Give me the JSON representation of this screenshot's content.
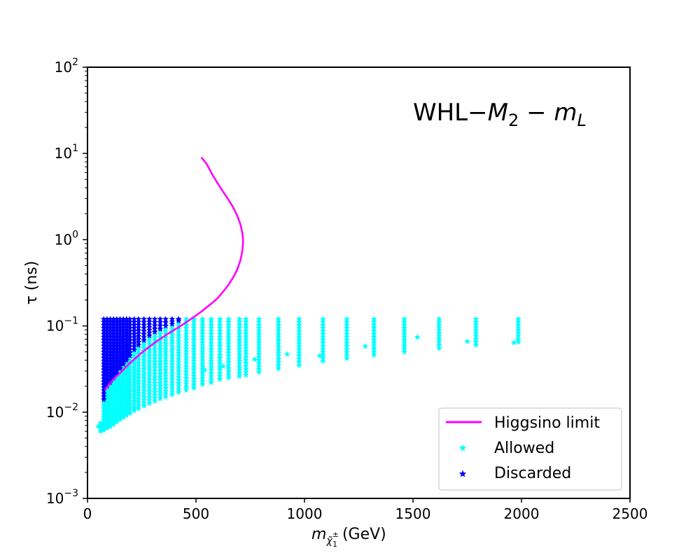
{
  "chart_data": {
    "type": "scatter",
    "annotation": {
      "prefix": "WHL",
      "dash": "−",
      "m": "M",
      "sub2": "2",
      "minus": " − ",
      "mL": "m",
      "subL": "L"
    },
    "xlabel": {
      "main": "m",
      "sub": "χ̃",
      "subsup": "±",
      "subsub": "1",
      "unit": "  (GeV)"
    },
    "ylabel": "τ (ns)",
    "x_range": [
      0,
      2500
    ],
    "y_range": [
      0.001,
      100
    ],
    "y_scale": "log",
    "x_ticks": [
      "0",
      "500",
      "1000",
      "1500",
      "2000",
      "2500"
    ],
    "y_ticks": [
      {
        "base": "10",
        "exp": "−3",
        "value": 0.001
      },
      {
        "base": "10",
        "exp": "−2",
        "value": 0.01
      },
      {
        "base": "10",
        "exp": "−1",
        "value": 0.1
      },
      {
        "base": "10",
        "exp": "0",
        "value": 1
      },
      {
        "base": "10",
        "exp": "1",
        "value": 10
      },
      {
        "base": "10",
        "exp": "2",
        "value": 100
      }
    ],
    "colors": {
      "higgsino": "#ff00ff",
      "allowed": "#00ffff",
      "discarded": "#0000ff"
    },
    "legend": {
      "placement": "lower-right",
      "entries": [
        {
          "label": "Higgsino limit",
          "kind": "line",
          "color": "#ff00ff"
        },
        {
          "label": "Allowed",
          "kind": "star",
          "color": "#00ffff"
        },
        {
          "label": "Discarded",
          "kind": "star",
          "color": "#0000ff"
        }
      ]
    },
    "series": [
      {
        "name": "Higgsino limit",
        "kind": "line",
        "x": [
          525,
          550,
          575,
          600,
          625,
          650,
          670,
          690,
          705,
          715,
          717,
          714,
          705,
          690,
          670,
          650,
          625,
          600,
          575,
          550,
          530,
          510,
          490,
          470,
          450,
          430,
          400,
          370,
          340,
          310,
          280,
          250,
          220,
          190,
          165,
          140,
          120,
          100,
          80
        ],
        "y": [
          9.0,
          7.5,
          5.7,
          4.5,
          3.6,
          2.9,
          2.4,
          1.9,
          1.5,
          1.15,
          0.95,
          0.75,
          0.58,
          0.45,
          0.36,
          0.3,
          0.25,
          0.21,
          0.185,
          0.165,
          0.15,
          0.138,
          0.127,
          0.117,
          0.108,
          0.1,
          0.09,
          0.081,
          0.072,
          0.064,
          0.056,
          0.049,
          0.042,
          0.036,
          0.031,
          0.027,
          0.024,
          0.021,
          0.018
        ]
      },
      {
        "name": "Allowed",
        "kind": "star-groups",
        "groups": [
          {
            "x": 60,
            "ymin": 0.006,
            "ymax": 0.0075
          },
          {
            "x": 75,
            "ymin": 0.0062,
            "ymax": 0.013
          },
          {
            "x": 90,
            "ymin": 0.0065,
            "ymax": 0.019
          },
          {
            "x": 105,
            "ymin": 0.0068,
            "ymax": 0.021
          },
          {
            "x": 120,
            "ymin": 0.0072,
            "ymax": 0.023
          },
          {
            "x": 135,
            "ymin": 0.0077,
            "ymax": 0.026
          },
          {
            "x": 150,
            "ymin": 0.0082,
            "ymax": 0.029
          },
          {
            "x": 165,
            "ymin": 0.0087,
            "ymax": 0.033
          },
          {
            "x": 180,
            "ymin": 0.0092,
            "ymax": 0.037
          },
          {
            "x": 195,
            "ymin": 0.0097,
            "ymax": 0.042
          },
          {
            "x": 215,
            "ymin": 0.0104,
            "ymax": 0.05
          },
          {
            "x": 235,
            "ymin": 0.011,
            "ymax": 0.056
          },
          {
            "x": 260,
            "ymin": 0.0118,
            "ymax": 0.065
          },
          {
            "x": 285,
            "ymin": 0.0126,
            "ymax": 0.073
          },
          {
            "x": 310,
            "ymin": 0.0134,
            "ymax": 0.08
          },
          {
            "x": 335,
            "ymin": 0.0143,
            "ymax": 0.087
          },
          {
            "x": 360,
            "ymin": 0.015,
            "ymax": 0.093
          },
          {
            "x": 390,
            "ymin": 0.016,
            "ymax": 0.1
          },
          {
            "x": 420,
            "ymin": 0.017,
            "ymax": 0.107
          },
          {
            "x": 455,
            "ymin": 0.018,
            "ymax": 0.12
          },
          {
            "x": 490,
            "ymin": 0.019,
            "ymax": 0.12
          },
          {
            "x": 530,
            "ymin": 0.021,
            "ymax": 0.12
          },
          {
            "x": 570,
            "ymin": 0.022,
            "ymax": 0.12
          },
          {
            "x": 610,
            "ymin": 0.024,
            "ymax": 0.12
          },
          {
            "x": 650,
            "ymin": 0.025,
            "ymax": 0.12
          },
          {
            "x": 700,
            "ymin": 0.026,
            "ymax": 0.12
          },
          {
            "x": 730,
            "ymin": 0.027,
            "ymax": 0.12
          },
          {
            "x": 790,
            "ymin": 0.029,
            "ymax": 0.12
          },
          {
            "x": 880,
            "ymin": 0.032,
            "ymax": 0.12
          },
          {
            "x": 975,
            "ymin": 0.035,
            "ymax": 0.12
          },
          {
            "x": 1085,
            "ymin": 0.039,
            "ymax": 0.12
          },
          {
            "x": 1195,
            "ymin": 0.042,
            "ymax": 0.12
          },
          {
            "x": 1320,
            "ymin": 0.046,
            "ymax": 0.12
          },
          {
            "x": 1460,
            "ymin": 0.05,
            "ymax": 0.12
          },
          {
            "x": 1620,
            "ymin": 0.055,
            "ymax": 0.12
          },
          {
            "x": 1790,
            "ymin": 0.06,
            "ymax": 0.12
          },
          {
            "x": 1985,
            "ymin": 0.065,
            "ymax": 0.12
          }
        ],
        "extra_points": [
          {
            "x": 50,
            "y": 0.0068
          },
          {
            "x": 920,
            "y": 0.047
          },
          {
            "x": 1070,
            "y": 0.045
          },
          {
            "x": 1280,
            "y": 0.058
          },
          {
            "x": 1520,
            "y": 0.074
          },
          {
            "x": 1750,
            "y": 0.066
          },
          {
            "x": 1965,
            "y": 0.064
          },
          {
            "x": 770,
            "y": 0.041
          },
          {
            "x": 625,
            "y": 0.034
          },
          {
            "x": 540,
            "y": 0.031
          }
        ]
      },
      {
        "name": "Discarded",
        "kind": "star-groups",
        "groups": [
          {
            "x": 75,
            "ymin": 0.014,
            "ymax": 0.12
          },
          {
            "x": 90,
            "ymin": 0.02,
            "ymax": 0.12
          },
          {
            "x": 105,
            "ymin": 0.022,
            "ymax": 0.12
          },
          {
            "x": 120,
            "ymin": 0.025,
            "ymax": 0.12
          },
          {
            "x": 135,
            "ymin": 0.028,
            "ymax": 0.12
          },
          {
            "x": 150,
            "ymin": 0.032,
            "ymax": 0.12
          },
          {
            "x": 165,
            "ymin": 0.036,
            "ymax": 0.12
          },
          {
            "x": 180,
            "ymin": 0.04,
            "ymax": 0.12
          },
          {
            "x": 195,
            "ymin": 0.045,
            "ymax": 0.12
          },
          {
            "x": 215,
            "ymin": 0.053,
            "ymax": 0.12
          },
          {
            "x": 235,
            "ymin": 0.06,
            "ymax": 0.12
          },
          {
            "x": 260,
            "ymin": 0.068,
            "ymax": 0.12
          },
          {
            "x": 285,
            "ymin": 0.077,
            "ymax": 0.12
          },
          {
            "x": 310,
            "ymin": 0.085,
            "ymax": 0.12
          },
          {
            "x": 335,
            "ymin": 0.092,
            "ymax": 0.12
          },
          {
            "x": 360,
            "ymin": 0.1,
            "ymax": 0.12
          },
          {
            "x": 390,
            "ymin": 0.105,
            "ymax": 0.12
          },
          {
            "x": 420,
            "ymin": 0.115,
            "ymax": 0.12
          }
        ]
      }
    ]
  }
}
